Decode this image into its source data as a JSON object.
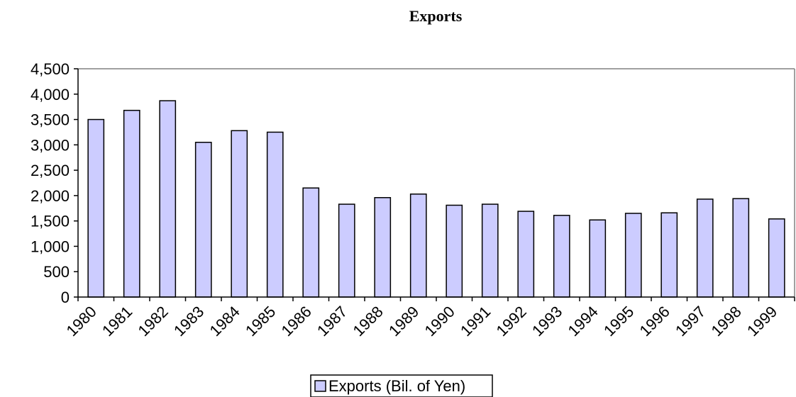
{
  "chart_data": {
    "type": "bar",
    "title": "Exports",
    "categories": [
      "1980",
      "1981",
      "1982",
      "1983",
      "1984",
      "1985",
      "1986",
      "1987",
      "1988",
      "1989",
      "1990",
      "1991",
      "1992",
      "1993",
      "1994",
      "1995",
      "1996",
      "1997",
      "1998",
      "1999"
    ],
    "series": [
      {
        "name": "Exports (Bil. of Yen)",
        "color": "#ccccff",
        "values": [
          3500,
          3680,
          3870,
          3050,
          3280,
          3250,
          2150,
          1830,
          1960,
          2030,
          1810,
          1830,
          1690,
          1610,
          1520,
          1650,
          1660,
          1930,
          1940,
          1540
        ]
      }
    ],
    "ylim": [
      0,
      4500
    ],
    "yticks": [
      0,
      500,
      {
        "value": 1000,
        "label": "1,000"
      },
      {
        "value": 1500,
        "label": "1,500"
      },
      {
        "value": 2000,
        "label": "2,000"
      },
      {
        "value": 2500,
        "label": "2,500"
      },
      {
        "value": 3000,
        "label": "3,000"
      },
      {
        "value": 3500,
        "label": "3,500"
      },
      {
        "value": 4000,
        "label": "4,000"
      },
      {
        "value": 4500,
        "label": "4,500"
      }
    ],
    "legend": "bottom"
  }
}
